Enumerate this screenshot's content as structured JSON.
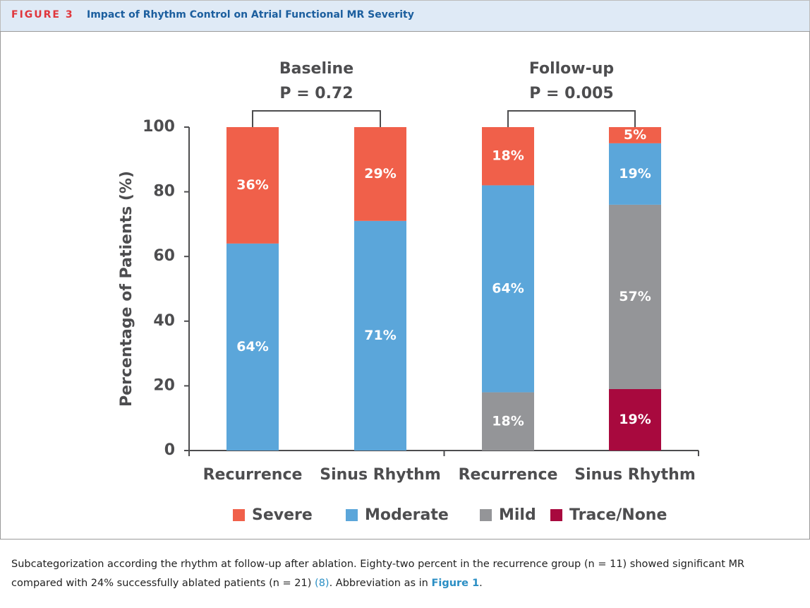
{
  "figure": {
    "label": "FIGURE 3",
    "title": "Impact of Rhythm Control on Atrial Functional MR Severity"
  },
  "chart_data": {
    "type": "stacked_bar",
    "y_label": "Percentage of Patients (%)",
    "categories": [
      "Recurrence",
      "Sinus Rhythm",
      "Recurrence",
      "Sinus Rhythm"
    ],
    "groups": [
      {
        "name": "Baseline",
        "p": "P = 0.72"
      },
      {
        "name": "Follow-up",
        "p": "P = 0.005"
      }
    ],
    "series": [
      {
        "name": "Severe",
        "color": "#f0604a",
        "values": [
          36,
          29,
          18,
          5
        ],
        "value_labels": [
          "36%",
          "29%",
          "18%",
          "5%"
        ]
      },
      {
        "name": "Moderate",
        "color": "#5ba6da",
        "values": [
          64,
          71,
          64,
          19
        ],
        "value_labels": [
          "64%",
          "71%",
          "64%",
          "19%"
        ]
      },
      {
        "name": "Mild",
        "color": "#949598",
        "values": [
          0,
          0,
          18,
          57
        ],
        "value_labels": [
          null,
          null,
          "18%",
          "57%"
        ]
      },
      {
        "name": "Trace/None",
        "color": "#a8093e",
        "values": [
          0,
          0,
          0,
          19
        ],
        "value_labels": [
          null,
          null,
          null,
          "19%"
        ]
      }
    ],
    "ylim": [
      0,
      100
    ],
    "yticks": [
      0,
      20,
      40,
      60,
      80,
      100
    ],
    "legend": "bottom"
  },
  "caption": [
    "Subcategorization according the rhythm at follow-up after ablation. Eighty-two percent in the recurrence group (n = 11) showed significant MR compared with 24% successfully ablated patients (n = 21) ",
    "(8)",
    ". Abbreviation as in ",
    "Figure 1",
    "."
  ]
}
